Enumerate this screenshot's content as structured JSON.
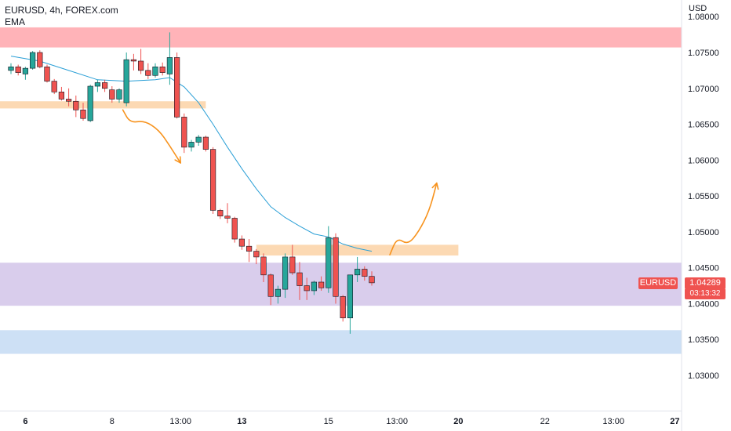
{
  "legend": {
    "symbol": "EURUSD, 4h, FOREX.com",
    "indicator": "EMA"
  },
  "currency": "USD",
  "last_price": {
    "symbol": "EURUSD",
    "price": "1.04289",
    "countdown": "03:13:32"
  },
  "colors": {
    "up": "#26a69a",
    "down": "#ef5350",
    "ema": "#2a9fd6",
    "arrow": "#f7931e",
    "zone_resistance": "#ffb3b8",
    "zone_orange": "#fcd9b3",
    "zone_purple": "#d9cdec",
    "zone_blue": "#cde0f5"
  },
  "chart_data": {
    "type": "candlestick",
    "y_axis": {
      "range": [
        1.025,
        1.0815
      ],
      "ticks": [
        "1.03000",
        "1.03500",
        "1.04000",
        "1.04500",
        "1.05000",
        "1.05500",
        "1.06000",
        "1.06500",
        "1.07000",
        "1.07500",
        "1.08000"
      ]
    },
    "x_axis": {
      "ticks": [
        {
          "label": "6",
          "bold": true,
          "idx": 2
        },
        {
          "label": "8",
          "bold": false,
          "idx": 14
        },
        {
          "label": "13:00",
          "bold": false,
          "idx": 23.5
        },
        {
          "label": "13",
          "bold": true,
          "idx": 32
        },
        {
          "label": "15",
          "bold": false,
          "idx": 44
        },
        {
          "label": "13:00",
          "bold": false,
          "idx": 53.5
        },
        {
          "label": "20",
          "bold": true,
          "idx": 62
        },
        {
          "label": "22",
          "bold": false,
          "idx": 74
        },
        {
          "label": "13:00",
          "bold": false,
          "idx": 83.5
        },
        {
          "label": "27",
          "bold": true,
          "idx": 92
        }
      ]
    },
    "candles": [
      [
        1.0725,
        1.0735,
        1.072,
        1.073
      ],
      [
        1.073,
        1.0733,
        1.0718,
        1.0722
      ],
      [
        1.072,
        1.073,
        1.0712,
        1.0728
      ],
      [
        1.0728,
        1.0752,
        1.0726,
        1.075
      ],
      [
        1.075,
        1.0753,
        1.0728,
        1.073
      ],
      [
        1.073,
        1.0733,
        1.0708,
        1.071
      ],
      [
        1.071,
        1.0713,
        1.0692,
        1.0695
      ],
      [
        1.0695,
        1.0702,
        1.0683,
        1.0685
      ],
      [
        1.0685,
        1.07,
        1.0675,
        1.0682
      ],
      [
        1.0682,
        1.069,
        1.066,
        1.067
      ],
      [
        1.067,
        1.068,
        1.0655,
        1.0658
      ],
      [
        1.0655,
        1.0705,
        1.0653,
        1.0703
      ],
      [
        1.0703,
        1.0712,
        1.0695,
        1.0708
      ],
      [
        1.0708,
        1.0712,
        1.0695,
        1.07
      ],
      [
        1.0698,
        1.0703,
        1.068,
        1.0685
      ],
      [
        1.0685,
        1.07,
        1.068,
        1.0698
      ],
      [
        1.068,
        1.075,
        1.0675,
        1.074
      ],
      [
        1.074,
        1.0748,
        1.0725,
        1.0738
      ],
      [
        1.0738,
        1.0755,
        1.072,
        1.0725
      ],
      [
        1.0725,
        1.0735,
        1.0713,
        1.0718
      ],
      [
        1.0718,
        1.0735,
        1.0715,
        1.073
      ],
      [
        1.073,
        1.0736,
        1.0718,
        1.0722
      ],
      [
        1.072,
        1.0778,
        1.0705,
        1.0743
      ],
      [
        1.0743,
        1.075,
        1.0658,
        1.066
      ],
      [
        1.066,
        1.0665,
        1.061,
        1.0618
      ],
      [
        1.0618,
        1.0628,
        1.0612,
        1.0625
      ],
      [
        1.0625,
        1.0635,
        1.062,
        1.0632
      ],
      [
        1.0632,
        1.0634,
        1.0612,
        1.0615
      ],
      [
        1.0615,
        1.0618,
        1.0525,
        1.053
      ],
      [
        1.053,
        1.0532,
        1.0518,
        1.0522
      ],
      [
        1.0522,
        1.054,
        1.0512,
        1.0519
      ],
      [
        1.0519,
        1.0521,
        1.0485,
        1.049
      ],
      [
        1.049,
        1.0495,
        1.0475,
        1.048
      ],
      [
        1.048,
        1.049,
        1.0458,
        1.0473
      ],
      [
        1.0473,
        1.0476,
        1.0455,
        1.0465
      ],
      [
        1.0465,
        1.047,
        1.043,
        1.044
      ],
      [
        1.044,
        1.0442,
        1.0398,
        1.041
      ],
      [
        1.041,
        1.0425,
        1.04,
        1.042
      ],
      [
        1.042,
        1.047,
        1.0408,
        1.0465
      ],
      [
        1.0465,
        1.0482,
        1.044,
        1.0443
      ],
      [
        1.0443,
        1.0458,
        1.0405,
        1.0425
      ],
      [
        1.0425,
        1.0436,
        1.0405,
        1.0418
      ],
      [
        1.0418,
        1.0432,
        1.0412,
        1.043
      ],
      [
        1.043,
        1.0438,
        1.0418,
        1.0422
      ],
      [
        1.0422,
        1.0508,
        1.0415,
        1.0492
      ],
      [
        1.0492,
        1.0498,
        1.04,
        1.041
      ],
      [
        1.041,
        1.0412,
        1.0375,
        1.038
      ],
      [
        1.038,
        1.044,
        1.0358,
        1.044
      ],
      [
        1.044,
        1.0465,
        1.043,
        1.0448
      ],
      [
        1.0448,
        1.0452,
        1.0432,
        1.0438
      ],
      [
        1.0438,
        1.0445,
        1.0425,
        1.0429
      ]
    ],
    "ema": [
      [
        0,
        1.0745
      ],
      [
        4,
        1.0738
      ],
      [
        8,
        1.0725
      ],
      [
        12,
        1.0712
      ],
      [
        16,
        1.071
      ],
      [
        20,
        1.0712
      ],
      [
        22,
        1.0715
      ],
      [
        24,
        1.0702
      ],
      [
        26,
        1.068
      ],
      [
        28,
        1.065
      ],
      [
        30,
        1.0618
      ],
      [
        32,
        1.0588
      ],
      [
        34,
        1.056
      ],
      [
        36,
        1.0535
      ],
      [
        38,
        1.052
      ],
      [
        40,
        1.0508
      ],
      [
        42,
        1.0497
      ],
      [
        44,
        1.0493
      ],
      [
        46,
        1.0483
      ],
      [
        48,
        1.0477
      ],
      [
        50,
        1.0473
      ]
    ],
    "zones": [
      {
        "name": "resistance-zone",
        "from_idx": -3,
        "to_idx": 97,
        "low": 1.0757,
        "high": 1.0785,
        "color": "#ffb3b8"
      },
      {
        "name": "orange-zone-upper",
        "from_idx": -3,
        "to_idx": 27,
        "low": 1.0672,
        "high": 1.0682,
        "color": "#fcd9b3"
      },
      {
        "name": "orange-zone-lower",
        "from_idx": 34,
        "to_idx": 62,
        "low": 1.0467,
        "high": 1.0482,
        "color": "#fcd9b3"
      },
      {
        "name": "purple-zone",
        "from_idx": -3,
        "to_idx": 97,
        "low": 1.0397,
        "high": 1.0457,
        "color": "#d9cdec"
      },
      {
        "name": "blue-zone",
        "from_idx": -3,
        "to_idx": 97,
        "low": 1.033,
        "high": 1.0363,
        "color": "#cde0f5"
      }
    ],
    "arrows": [
      {
        "name": "down-arrow",
        "points": [
          [
            15.5,
            1.067
          ],
          [
            16.5,
            1.0652
          ],
          [
            18.5,
            1.0655
          ],
          [
            20.5,
            1.0642
          ],
          [
            22,
            1.062
          ],
          [
            23.5,
            1.0596
          ]
        ]
      },
      {
        "name": "up-arrow",
        "points": [
          [
            52.5,
            1.0468
          ],
          [
            53.5,
            1.0492
          ],
          [
            55,
            1.0482
          ],
          [
            56.5,
            1.05
          ],
          [
            58,
            1.053
          ],
          [
            59,
            1.0568
          ]
        ]
      }
    ]
  }
}
